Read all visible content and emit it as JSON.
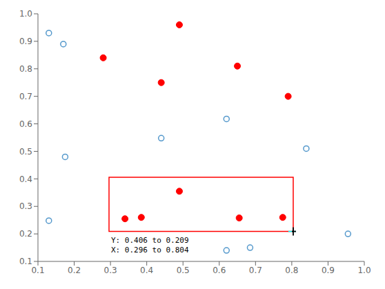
{
  "chart_data": {
    "type": "scatter",
    "series": [
      {
        "color": "#5599cc",
        "marker": "open_circle",
        "x": [
          0.13,
          0.17,
          0.175,
          0.13,
          0.44,
          0.62,
          0.84,
          0.62,
          0.685,
          0.955
        ],
        "values": [
          0.93,
          0.89,
          0.48,
          0.248,
          0.548,
          0.618,
          0.51,
          0.14,
          0.15,
          0.2
        ]
      },
      {
        "color": "red",
        "marker": "circle",
        "x": [
          0.28,
          0.49,
          0.44,
          0.65,
          0.79
        ],
        "values": [
          0.84,
          0.96,
          0.75,
          0.81,
          0.7
        ]
      },
      {
        "color": "red",
        "marker": "circle",
        "x": [
          0.34,
          0.385,
          0.49,
          0.655,
          0.775
        ],
        "values": [
          0.255,
          0.26,
          0.355,
          0.258,
          0.26
        ]
      }
    ],
    "rectangle": {
      "x": [
        0.296,
        0.804
      ],
      "y": [
        0.209,
        0.406
      ],
      "color": "red"
    },
    "crosshair": {
      "x": 0.804,
      "y": 0.209
    },
    "annotation": [
      "Y: 0.406 to 0.209",
      "X: 0.296 to 0.804"
    ],
    "xlim": [
      0.1,
      1.0
    ],
    "ylim": [
      0.1,
      1.0
    ],
    "xticks": [
      0.1,
      0.2,
      0.3,
      0.4,
      0.5,
      0.6,
      0.7,
      0.8,
      0.9,
      {
        "value": 1.0,
        "label": "1.0"
      }
    ],
    "yticks": [
      0.1,
      0.2,
      0.3,
      0.4,
      0.5,
      0.6,
      0.7,
      0.8,
      0.9,
      {
        "value": 1.0,
        "label": "1.0"
      }
    ],
    "grid": false
  }
}
